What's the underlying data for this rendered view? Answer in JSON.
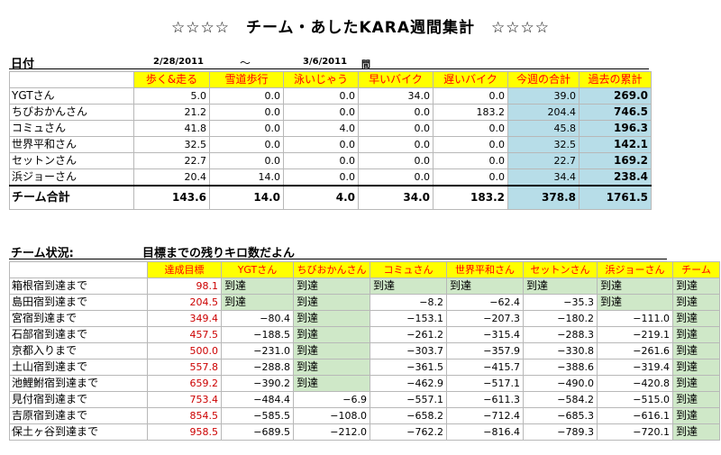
{
  "title": "☆☆☆☆　チーム・あしたKARA週間集計　☆☆☆☆",
  "header": {
    "date_label": "日付",
    "date_from": "2/28/2011",
    "tilde": "～",
    "date_to": "3/6/2011",
    "ma": "間"
  },
  "weekly": {
    "columns": [
      "歩く&走る",
      "雪道歩行",
      "泳いじゃう",
      "早いバイク",
      "遅いバイク",
      "今週の合計",
      "過去の累計"
    ],
    "rows": [
      {
        "name": "YGTさん",
        "values": [
          "5.0",
          "0.0",
          "0.0",
          "34.0",
          "0.0",
          "39.0",
          "269.0"
        ]
      },
      {
        "name": "ちびおかんさん",
        "values": [
          "21.2",
          "0.0",
          "0.0",
          "0.0",
          "183.2",
          "204.4",
          "746.5"
        ]
      },
      {
        "name": "コミュさん",
        "values": [
          "41.8",
          "0.0",
          "4.0",
          "0.0",
          "0.0",
          "45.8",
          "196.3"
        ]
      },
      {
        "name": "世界平和さん",
        "values": [
          "32.5",
          "0.0",
          "0.0",
          "0.0",
          "0.0",
          "32.5",
          "142.1"
        ]
      },
      {
        "name": "セットンさん",
        "values": [
          "22.7",
          "0.0",
          "0.0",
          "0.0",
          "0.0",
          "22.7",
          "169.2"
        ]
      },
      {
        "name": "浜ジョーさん",
        "values": [
          "20.4",
          "14.0",
          "0.0",
          "0.0",
          "0.0",
          "34.4",
          "238.4"
        ]
      }
    ],
    "total": {
      "name": "チーム合計",
      "values": [
        "143.6",
        "14.0",
        "4.0",
        "34.0",
        "183.2",
        "378.8",
        "1761.5"
      ]
    }
  },
  "status_header": {
    "label": "チーム状況:",
    "subtitle": "目標までの残りキロ数だよん"
  },
  "status": {
    "columns": [
      "達成目標",
      "YGTさん",
      "ちびおかんさん",
      "コミュさん",
      "世界平和さん",
      "セットンさん",
      "浜ジョーさん",
      "チーム"
    ],
    "rows": [
      {
        "name": "箱根宿到達まで",
        "goal": "98.1",
        "cells": [
          "到達",
          "到達",
          "到達",
          "到達",
          "到達",
          "到達",
          "到達"
        ]
      },
      {
        "name": "島田宿到達まで",
        "goal": "204.5",
        "cells": [
          "到達",
          "到達",
          "−8.2",
          "−62.4",
          "−35.3",
          "到達",
          "到達"
        ]
      },
      {
        "name": "宮宿到達まで",
        "goal": "349.4",
        "cells": [
          "−80.4",
          "到達",
          "−153.1",
          "−207.3",
          "−180.2",
          "−111.0",
          "到達"
        ]
      },
      {
        "name": "石部宿到達まで",
        "goal": "457.5",
        "cells": [
          "−188.5",
          "到達",
          "−261.2",
          "−315.4",
          "−288.3",
          "−219.1",
          "到達"
        ]
      },
      {
        "name": "京都入りまで",
        "goal": "500.0",
        "cells": [
          "−231.0",
          "到達",
          "−303.7",
          "−357.9",
          "−330.8",
          "−261.6",
          "到達"
        ]
      },
      {
        "name": "土山宿到達まで",
        "goal": "557.8",
        "cells": [
          "−288.8",
          "到達",
          "−361.5",
          "−415.7",
          "−388.6",
          "−319.4",
          "到達"
        ]
      },
      {
        "name": "池鯉鮒宿到達まで",
        "goal": "659.2",
        "cells": [
          "−390.2",
          "到達",
          "−462.9",
          "−517.1",
          "−490.0",
          "−420.8",
          "到達"
        ]
      },
      {
        "name": "見付宿到達まで",
        "goal": "753.4",
        "cells": [
          "−484.4",
          "−6.9",
          "−557.1",
          "−611.3",
          "−584.2",
          "−515.0",
          "到達"
        ]
      },
      {
        "name": "吉原宿到達まで",
        "goal": "854.5",
        "cells": [
          "−585.5",
          "−108.0",
          "−658.2",
          "−712.4",
          "−685.3",
          "−616.1",
          "到達"
        ]
      },
      {
        "name": "保土ヶ谷到達まで",
        "goal": "958.5",
        "cells": [
          "−689.5",
          "−212.0",
          "−762.2",
          "−816.4",
          "−789.3",
          "−720.1",
          "到達"
        ]
      }
    ]
  },
  "colors": {
    "header_yellow": "#ffff00",
    "header_red_text": "#ff0000",
    "reached_green": "#cfe8c8",
    "totals_blue": "#b7dde8"
  }
}
